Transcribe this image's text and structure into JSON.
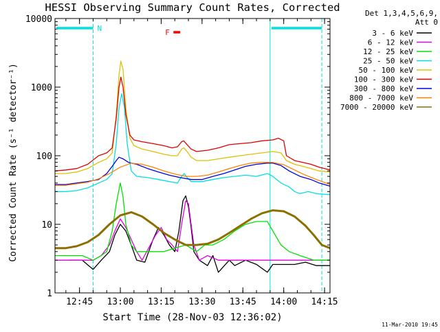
{
  "chart_data": {
    "type": "line",
    "title": "HESSI Observing Summary Count Rates, Corrected",
    "xlabel": "Start Time (28-Nov-03 12:36:02)",
    "ylabel": "Corrected Count Rate (s⁻¹ detector⁻¹)",
    "yscale": "log",
    "ylim": [
      1,
      10000
    ],
    "xlim_minutes_from_1236": [
      0,
      101
    ],
    "x_ticks": [
      {
        "label": "12:45",
        "t": 9
      },
      {
        "label": "13:00",
        "t": 24
      },
      {
        "label": "13:15",
        "t": 39
      },
      {
        "label": "13:30",
        "t": 54
      },
      {
        "label": "13:45",
        "t": 69
      },
      {
        "label": "14:00",
        "t": 84
      },
      {
        "label": "14:15",
        "t": 99
      }
    ],
    "y_ticks": [
      "1",
      "10",
      "100",
      "1000",
      "10000"
    ],
    "legend_header": [
      "Det 1,3,4,5,6,9,",
      "Att 0"
    ],
    "legend_position": "right",
    "date_stamp": "11-Mar-2010 19:45",
    "markers": {
      "night_label": "N",
      "flare_label": "F",
      "night_bar_color": "#00e0e0",
      "flare_bar_color": "#ff0000",
      "night_intervals": [
        [
          0,
          14
        ],
        [
          79,
          98
        ]
      ],
      "night_bounds": [
        0,
        14,
        79,
        98
      ],
      "flare_bar_t": [
        43.5,
        46
      ]
    },
    "series": [
      {
        "name": "3 - 6 keV",
        "color": "#000000",
        "points": [
          [
            5,
            3
          ],
          [
            10,
            3
          ],
          [
            14,
            2.2
          ],
          [
            17,
            3
          ],
          [
            20,
            4
          ],
          [
            22,
            7
          ],
          [
            24,
            10
          ],
          [
            26,
            8
          ],
          [
            28,
            5
          ],
          [
            30,
            3
          ],
          [
            33,
            2.8
          ],
          [
            36,
            6
          ],
          [
            38,
            9
          ],
          [
            40,
            7
          ],
          [
            42,
            5
          ],
          [
            44,
            4
          ],
          [
            45.5,
            8
          ],
          [
            47,
            22
          ],
          [
            48,
            26
          ],
          [
            49,
            18
          ],
          [
            50,
            9
          ],
          [
            51,
            4
          ],
          [
            53,
            3
          ],
          [
            56,
            2.5
          ],
          [
            58,
            3.5
          ],
          [
            60,
            2
          ],
          [
            64,
            3
          ],
          [
            66,
            2.5
          ],
          [
            70,
            3
          ],
          [
            74,
            2.6
          ],
          [
            78,
            2
          ],
          [
            80,
            2.6
          ],
          [
            84,
            2.6
          ],
          [
            88,
            2.6
          ],
          [
            92,
            2.8
          ],
          [
            96,
            2.5
          ],
          [
            101,
            2.5
          ]
        ]
      },
      {
        "name": "6 - 12 keV",
        "color": "#e000e0",
        "points": [
          [
            0,
            3
          ],
          [
            5,
            3
          ],
          [
            10,
            3
          ],
          [
            14,
            3
          ],
          [
            17,
            3.5
          ],
          [
            20,
            5
          ],
          [
            22,
            8
          ],
          [
            24,
            12
          ],
          [
            26,
            9
          ],
          [
            28,
            6
          ],
          [
            30,
            4
          ],
          [
            32,
            3
          ],
          [
            35,
            5
          ],
          [
            37,
            7
          ],
          [
            39,
            9
          ],
          [
            41,
            6
          ],
          [
            43,
            5
          ],
          [
            45,
            4
          ],
          [
            46.5,
            10
          ],
          [
            48,
            22
          ],
          [
            49,
            20
          ],
          [
            50,
            10
          ],
          [
            51,
            5
          ],
          [
            53,
            3
          ],
          [
            56,
            3.5
          ],
          [
            60,
            3
          ],
          [
            65,
            3
          ],
          [
            70,
            3
          ],
          [
            75,
            3
          ],
          [
            80,
            3
          ],
          [
            85,
            3
          ],
          [
            90,
            3
          ],
          [
            95,
            3
          ],
          [
            101,
            3
          ]
        ]
      },
      {
        "name": "12 - 25 keV",
        "color": "#00e000",
        "points": [
          [
            0,
            3.5
          ],
          [
            5,
            3.5
          ],
          [
            10,
            3.5
          ],
          [
            14,
            3
          ],
          [
            17,
            3.5
          ],
          [
            19,
            4
          ],
          [
            21,
            8
          ],
          [
            22.5,
            20
          ],
          [
            24,
            40
          ],
          [
            25,
            25
          ],
          [
            26,
            10
          ],
          [
            28,
            5
          ],
          [
            30,
            4
          ],
          [
            33,
            4
          ],
          [
            36,
            4
          ],
          [
            40,
            4
          ],
          [
            44,
            4.5
          ],
          [
            48,
            5
          ],
          [
            52,
            4
          ],
          [
            55,
            5
          ],
          [
            58,
            5
          ],
          [
            62,
            6
          ],
          [
            66,
            8
          ],
          [
            70,
            10
          ],
          [
            74,
            11
          ],
          [
            78,
            11
          ],
          [
            80,
            8
          ],
          [
            83,
            5
          ],
          [
            86,
            4
          ],
          [
            90,
            3.5
          ],
          [
            95,
            3
          ],
          [
            101,
            3
          ]
        ]
      },
      {
        "name": "25 - 50 keV",
        "color": "#00e0e0",
        "points": [
          [
            0,
            30
          ],
          [
            4,
            30
          ],
          [
            8,
            31
          ],
          [
            12,
            34
          ],
          [
            16,
            40
          ],
          [
            19,
            45
          ],
          [
            21,
            55
          ],
          [
            22.5,
            150
          ],
          [
            23.5,
            500
          ],
          [
            24.5,
            800
          ],
          [
            25.5,
            500
          ],
          [
            26.5,
            150
          ],
          [
            28,
            60
          ],
          [
            30,
            50
          ],
          [
            34,
            48
          ],
          [
            38,
            45
          ],
          [
            42,
            42
          ],
          [
            45,
            40
          ],
          [
            46.5,
            50
          ],
          [
            47.5,
            55
          ],
          [
            48.5,
            48
          ],
          [
            50,
            42
          ],
          [
            54,
            42
          ],
          [
            58,
            45
          ],
          [
            62,
            48
          ],
          [
            66,
            50
          ],
          [
            70,
            52
          ],
          [
            74,
            50
          ],
          [
            78,
            55
          ],
          [
            80,
            50
          ],
          [
            83,
            40
          ],
          [
            86,
            35
          ],
          [
            88,
            30
          ],
          [
            90,
            28
          ],
          [
            93,
            30
          ],
          [
            96,
            28
          ],
          [
            101,
            27
          ]
        ]
      },
      {
        "name": "50 - 100 keV",
        "color": "#e0c000",
        "points": [
          [
            0,
            55
          ],
          [
            4,
            55
          ],
          [
            8,
            58
          ],
          [
            12,
            65
          ],
          [
            16,
            80
          ],
          [
            19,
            90
          ],
          [
            21,
            110
          ],
          [
            22.5,
            400
          ],
          [
            23.5,
            1500
          ],
          [
            24.2,
            2400
          ],
          [
            25,
            1800
          ],
          [
            26,
            500
          ],
          [
            27.5,
            180
          ],
          [
            29,
            140
          ],
          [
            32,
            125
          ],
          [
            36,
            115
          ],
          [
            40,
            105
          ],
          [
            43,
            100
          ],
          [
            45,
            100
          ],
          [
            46.5,
            125
          ],
          [
            47.3,
            130
          ],
          [
            48.5,
            115
          ],
          [
            50,
            95
          ],
          [
            52,
            85
          ],
          [
            56,
            85
          ],
          [
            60,
            90
          ],
          [
            64,
            95
          ],
          [
            68,
            100
          ],
          [
            72,
            105
          ],
          [
            76,
            110
          ],
          [
            80,
            115
          ],
          [
            83,
            110
          ],
          [
            85,
            85
          ],
          [
            88,
            75
          ],
          [
            91,
            70
          ],
          [
            94,
            65
          ],
          [
            97,
            60
          ],
          [
            101,
            58
          ]
        ]
      },
      {
        "name": "100 - 300 keV",
        "color": "#e00000",
        "points": [
          [
            0,
            60
          ],
          [
            4,
            62
          ],
          [
            8,
            65
          ],
          [
            12,
            75
          ],
          [
            16,
            100
          ],
          [
            19,
            110
          ],
          [
            21,
            130
          ],
          [
            22.5,
            350
          ],
          [
            23.5,
            1000
          ],
          [
            24.2,
            1400
          ],
          [
            25,
            1000
          ],
          [
            26,
            400
          ],
          [
            27.5,
            200
          ],
          [
            29,
            170
          ],
          [
            32,
            160
          ],
          [
            36,
            150
          ],
          [
            40,
            140
          ],
          [
            43,
            130
          ],
          [
            45,
            135
          ],
          [
            46.5,
            160
          ],
          [
            47.3,
            165
          ],
          [
            48.5,
            145
          ],
          [
            50,
            125
          ],
          [
            52,
            115
          ],
          [
            56,
            120
          ],
          [
            60,
            130
          ],
          [
            64,
            145
          ],
          [
            68,
            150
          ],
          [
            72,
            155
          ],
          [
            76,
            165
          ],
          [
            80,
            170
          ],
          [
            82,
            180
          ],
          [
            84,
            165
          ],
          [
            85,
            100
          ],
          [
            88,
            85
          ],
          [
            91,
            80
          ],
          [
            94,
            75
          ],
          [
            97,
            68
          ],
          [
            101,
            62
          ]
        ]
      },
      {
        "name": "300 - 800 keV",
        "color": "#0000e0",
        "points": [
          [
            0,
            38
          ],
          [
            4,
            38
          ],
          [
            8,
            40
          ],
          [
            12,
            42
          ],
          [
            16,
            45
          ],
          [
            19,
            55
          ],
          [
            21,
            70
          ],
          [
            22.5,
            85
          ],
          [
            23.5,
            95
          ],
          [
            25,
            90
          ],
          [
            27,
            80
          ],
          [
            30,
            75
          ],
          [
            34,
            65
          ],
          [
            38,
            58
          ],
          [
            42,
            52
          ],
          [
            46,
            48
          ],
          [
            50,
            45
          ],
          [
            54,
            45
          ],
          [
            58,
            50
          ],
          [
            62,
            55
          ],
          [
            66,
            62
          ],
          [
            70,
            70
          ],
          [
            74,
            75
          ],
          [
            78,
            78
          ],
          [
            80,
            78
          ],
          [
            83,
            72
          ],
          [
            86,
            60
          ],
          [
            90,
            50
          ],
          [
            94,
            45
          ],
          [
            97,
            40
          ],
          [
            101,
            36
          ]
        ]
      },
      {
        "name": "800 - 7000 keV",
        "color": "#ff8000",
        "points": [
          [
            0,
            37
          ],
          [
            4,
            37
          ],
          [
            8,
            39
          ],
          [
            12,
            41
          ],
          [
            16,
            46
          ],
          [
            20,
            55
          ],
          [
            24,
            68
          ],
          [
            28,
            78
          ],
          [
            32,
            75
          ],
          [
            36,
            68
          ],
          [
            40,
            60
          ],
          [
            44,
            54
          ],
          [
            48,
            50
          ],
          [
            52,
            50
          ],
          [
            56,
            52
          ],
          [
            60,
            58
          ],
          [
            64,
            65
          ],
          [
            68,
            72
          ],
          [
            72,
            78
          ],
          [
            76,
            80
          ],
          [
            80,
            80
          ],
          [
            84,
            74
          ],
          [
            88,
            62
          ],
          [
            92,
            52
          ],
          [
            96,
            45
          ],
          [
            101,
            38
          ]
        ]
      },
      {
        "name": "7000 - 20000 keV",
        "color": "#8b7000",
        "points": [
          [
            0,
            4.5
          ],
          [
            4,
            4.5
          ],
          [
            8,
            4.8
          ],
          [
            12,
            5.5
          ],
          [
            16,
            7
          ],
          [
            20,
            10
          ],
          [
            24,
            13.5
          ],
          [
            28,
            15
          ],
          [
            32,
            13
          ],
          [
            36,
            10
          ],
          [
            40,
            7.5
          ],
          [
            44,
            6
          ],
          [
            48,
            5
          ],
          [
            52,
            5
          ],
          [
            56,
            5.2
          ],
          [
            60,
            6
          ],
          [
            64,
            7.5
          ],
          [
            68,
            9.5
          ],
          [
            72,
            12
          ],
          [
            76,
            14.5
          ],
          [
            80,
            16
          ],
          [
            84,
            15.5
          ],
          [
            88,
            13
          ],
          [
            92,
            9.5
          ],
          [
            95,
            7
          ],
          [
            98,
            5
          ],
          [
            101,
            4.5
          ]
        ]
      }
    ]
  }
}
